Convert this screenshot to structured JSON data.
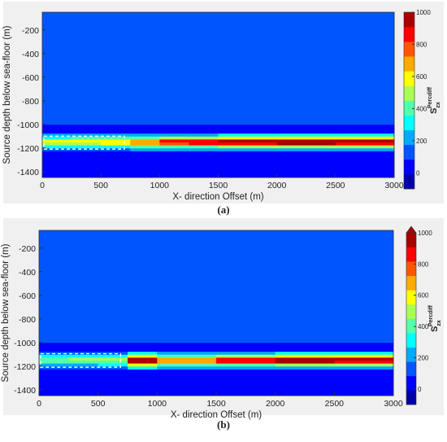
{
  "chart_data": [
    {
      "type": "heatmap",
      "panel_label": "(a)",
      "xlabel": "X- direction Offset (m)",
      "ylabel": "Source depth below sea-floor (m)",
      "xlim": [
        0,
        3000
      ],
      "ylim": [
        -1450,
        -50
      ],
      "xticks": [
        0,
        500,
        1000,
        1500,
        2000,
        2500,
        3000
      ],
      "yticks": [
        -1400,
        -1200,
        -1000,
        -800,
        -600,
        -400,
        -200
      ],
      "colormap": "jet",
      "clim": [
        -100,
        1000
      ],
      "cbar_ticks": [
        0,
        200,
        400,
        600,
        800,
        1000
      ],
      "colorbar_label": {
        "base": "S",
        "sub": "zx",
        "sup": "Percdiff"
      },
      "xbins": [
        0,
        250,
        500,
        750,
        1000,
        1250,
        1500,
        2000,
        2500,
        3000
      ],
      "ybins": [
        -1450,
        -1300,
        -1225,
        -1200,
        -1175,
        -1150,
        -1125,
        -1100,
        -1075,
        -1000,
        -50
      ],
      "z": [
        [
          0,
          0,
          0,
          0,
          0,
          0,
          0,
          0,
          0
        ],
        [
          30,
          30,
          40,
          40,
          50,
          50,
          50,
          50,
          50
        ],
        [
          150,
          150,
          170,
          180,
          200,
          200,
          220,
          220,
          200
        ],
        [
          300,
          320,
          350,
          380,
          420,
          450,
          480,
          500,
          480
        ],
        [
          500,
          520,
          580,
          680,
          800,
          850,
          900,
          950,
          900
        ],
        [
          550,
          560,
          620,
          720,
          820,
          870,
          920,
          970,
          920
        ],
        [
          350,
          360,
          400,
          450,
          500,
          520,
          550,
          580,
          550
        ],
        [
          180,
          180,
          200,
          230,
          250,
          260,
          280,
          300,
          280
        ],
        [
          80,
          80,
          80,
          80,
          80,
          80,
          80,
          80,
          80
        ],
        [
          150,
          120,
          110,
          100,
          110,
          100,
          90,
          90,
          90
        ]
      ],
      "box": {
        "x": [
          0,
          700
        ],
        "y": [
          -1210,
          -1100
        ]
      }
    },
    {
      "type": "heatmap",
      "panel_label": "(b)",
      "xlabel": "X- direction Offset (m)",
      "ylabel": "Source depth below sea-floor (m)",
      "xlim": [
        0,
        3000
      ],
      "ylim": [
        -1450,
        -50
      ],
      "xticks": [
        0,
        500,
        1000,
        1500,
        2000,
        2500,
        3000
      ],
      "yticks": [
        -1400,
        -1200,
        -1000,
        -800,
        -600,
        -400,
        -200
      ],
      "colormap": "jet",
      "clim": [
        -100,
        1000
      ],
      "cbar_ticks": [
        0,
        200,
        400,
        600,
        800,
        1000
      ],
      "colorbar_extend": "max",
      "colorbar_label": {
        "base": "S",
        "sub": "zx",
        "sup": "Percdiff"
      },
      "xbins": [
        0,
        250,
        500,
        750,
        1000,
        1250,
        1500,
        2000,
        2500,
        3000
      ],
      "ybins": [
        -1450,
        -1300,
        -1225,
        -1200,
        -1175,
        -1150,
        -1125,
        -1100,
        -1075,
        -1000,
        -50
      ],
      "z": [
        [
          0,
          0,
          0,
          0,
          0,
          0,
          0,
          0,
          0
        ],
        [
          30,
          30,
          30,
          60,
          50,
          40,
          50,
          50,
          50
        ],
        [
          120,
          130,
          150,
          300,
          200,
          180,
          200,
          220,
          200
        ],
        [
          250,
          260,
          300,
          600,
          400,
          380,
          450,
          480,
          480
        ],
        [
          400,
          420,
          450,
          950,
          650,
          650,
          850,
          930,
          900
        ],
        [
          450,
          460,
          500,
          980,
          700,
          700,
          880,
          960,
          920
        ],
        [
          300,
          300,
          320,
          600,
          420,
          420,
          520,
          570,
          550
        ],
        [
          150,
          150,
          160,
          300,
          220,
          220,
          260,
          290,
          280
        ],
        [
          80,
          80,
          80,
          80,
          80,
          80,
          80,
          80,
          80
        ],
        [
          150,
          120,
          110,
          100,
          110,
          100,
          90,
          90,
          90
        ]
      ],
      "box": {
        "x": [
          0,
          690
        ],
        "y": [
          -1210,
          -1095
        ]
      }
    }
  ]
}
